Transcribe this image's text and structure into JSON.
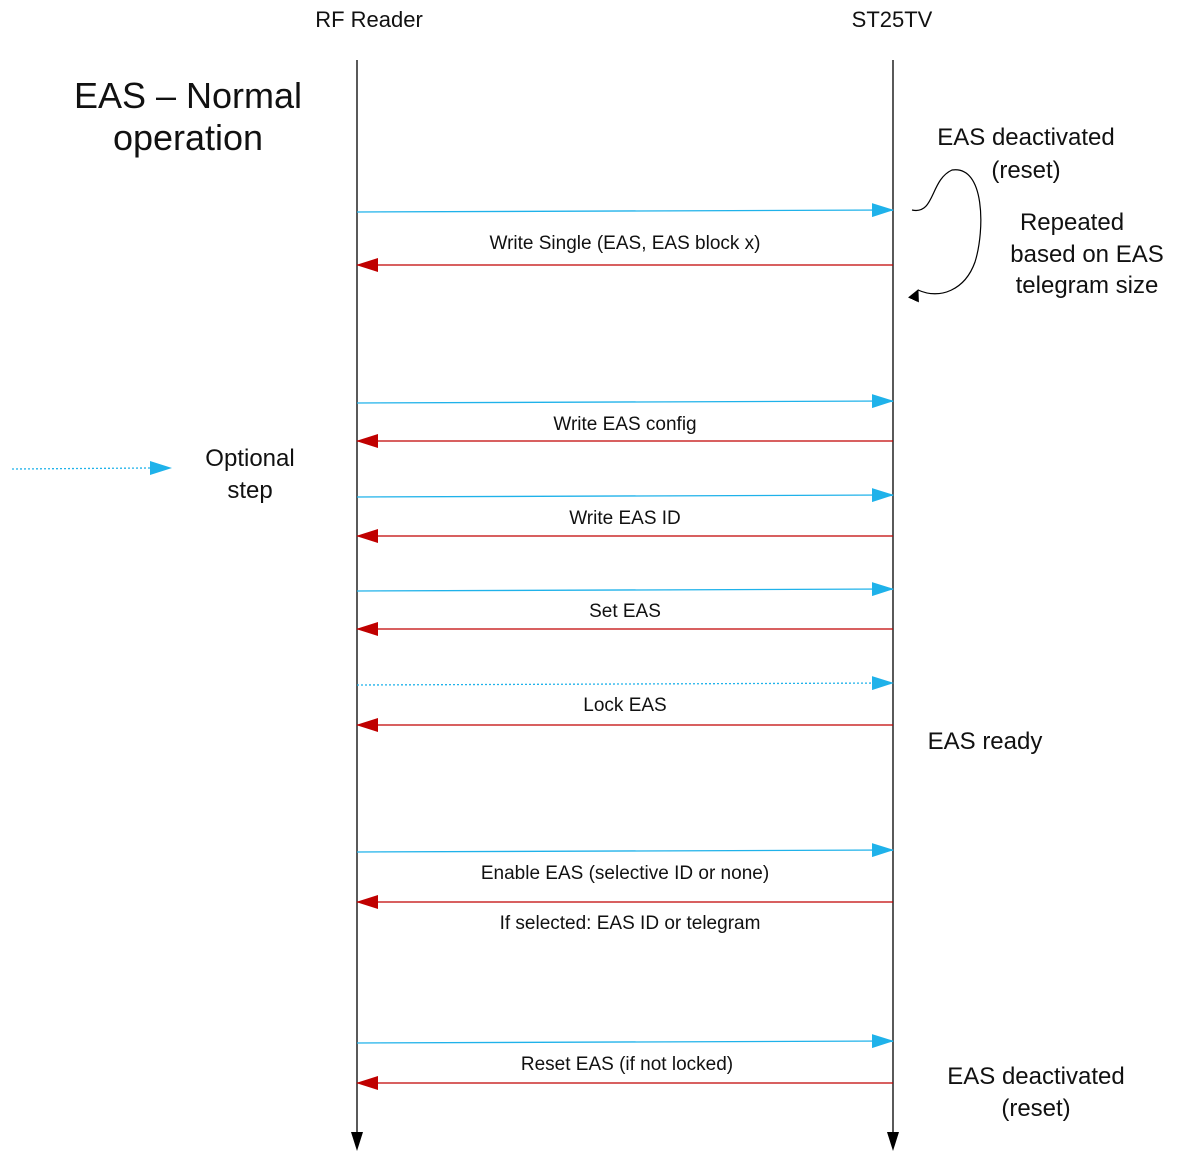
{
  "participants": {
    "reader": "RF Reader",
    "tag": "ST25TV"
  },
  "title": {
    "line1": "EAS – Normal",
    "line2": "operation"
  },
  "legend": {
    "line1": "Optional",
    "line2": "step"
  },
  "states": {
    "deactivated_top_line1": "EAS deactivated",
    "deactivated_top_line2": "(reset)",
    "repeated_line1": "Repeated",
    "repeated_line2": "based on EAS",
    "repeated_line3": "telegram size",
    "ready": "EAS ready",
    "deactivated_bottom_line1": "EAS deactivated",
    "deactivated_bottom_line2": "(reset)"
  },
  "messages": [
    {
      "label": "Write Single (EAS, EAS block x)",
      "optional": false
    },
    {
      "label": "Write EAS config",
      "optional": false
    },
    {
      "label": "Write EAS ID",
      "optional": false
    },
    {
      "label": "Set EAS",
      "optional": false
    },
    {
      "label": "Lock EAS",
      "optional": true
    },
    {
      "label": "Enable EAS (selective ID or none)",
      "response_label": "If selected: EAS ID or telegram",
      "optional": false
    },
    {
      "label": "Reset EAS (if not locked)",
      "optional": false
    }
  ],
  "colors": {
    "request": "#1fb2ea",
    "response": "#c00000",
    "lifeline": "#000000"
  }
}
